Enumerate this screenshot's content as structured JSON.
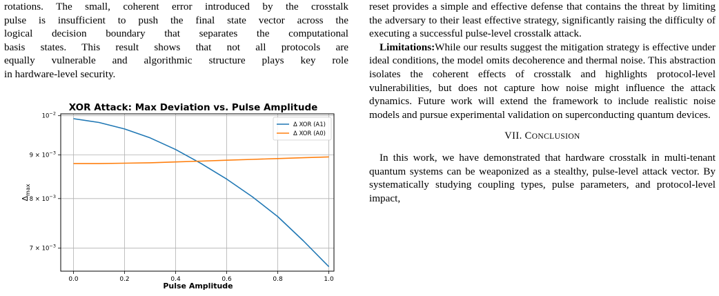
{
  "left_column": {
    "paragraph_lines": [
      "rotations. The small, coherent error introduced by the crosstalk",
      "pulse is insufficient to push the final state vector across the",
      "logical decision boundary that separates the computational",
      "basis states. This result shows that not all protocols are",
      "equally vulnerable and algorithmic structure plays key role",
      "in hardware-level security."
    ]
  },
  "right_column": {
    "paragraph1": "reset provides a simple and effective defense that contains the threat by limiting the adversary to their least effective strategy, significantly raising the difficulty of executing a successful pulse-level crosstalk attack.",
    "limitations_label": "Limitations:",
    "limitations_text": "While our results suggest the mitigation strategy is effective under ideal conditions, the model omits decoherence and thermal noise. This abstraction isolates the coherent effects of crosstalk and highlights protocol-level vulnerabilities, but does not capture how noise might influence the attack dynamics. Future work will extend the framework to include realistic noise models and pursue experimental validation on superconducting quantum devices.",
    "section_number": "VII.",
    "section_title_first": "C",
    "section_title_rest": "ONCLUSION",
    "conclusion_text": "In this work, we have demonstrated that hardware crosstalk in multi-tenant quantum systems can be weaponized as a stealthy, pulse-level attack vector. By systematically studying coupling types, pulse parameters, and protocol-level impact,"
  },
  "chart_data": {
    "type": "line",
    "title": "XOR Attack: Max Deviation vs. Pulse Amplitude",
    "xlabel": "Pulse Amplitude",
    "ylabel": "Δmax",
    "ylabel_main": "Δ",
    "ylabel_sub": "max",
    "xlim": [
      -0.05,
      1.02
    ],
    "ylim": [
      0.00658,
      0.01005
    ],
    "yscale": "log",
    "x_ticks": [
      0.0,
      0.2,
      0.4,
      0.6,
      0.8,
      1.0
    ],
    "x_tick_labels": [
      "0.0",
      "0.2",
      "0.4",
      "0.6",
      "0.8",
      "1.0"
    ],
    "y_ticks": [
      {
        "value": 0.01,
        "mantissa": "",
        "base": "10",
        "exp": "−2"
      },
      {
        "value": 0.009,
        "mantissa": "9 × ",
        "base": "10",
        "exp": "−3"
      },
      {
        "value": 0.008,
        "mantissa": "8 × ",
        "base": "10",
        "exp": "−3"
      },
      {
        "value": 0.007,
        "mantissa": "7 × ",
        "base": "10",
        "exp": "−3"
      }
    ],
    "grid": true,
    "legend_position": "top-right",
    "series": [
      {
        "name": "Δ XOR (A1)",
        "color": "#1f77b4",
        "x": [
          0.0,
          0.1,
          0.2,
          0.3,
          0.4,
          0.5,
          0.6,
          0.7,
          0.8,
          0.9,
          1.0
        ],
        "y": [
          0.00992,
          0.00982,
          0.00965,
          0.00942,
          0.00913,
          0.00879,
          0.00843,
          0.00804,
          0.00762,
          0.00714,
          0.00666
        ]
      },
      {
        "name": "Δ XOR (A0)",
        "color": "#ff7f0e",
        "x": [
          0.0,
          0.1,
          0.2,
          0.3,
          0.4,
          0.5,
          0.6,
          0.7,
          0.8,
          0.9,
          1.0
        ],
        "y": [
          0.00879,
          0.00879,
          0.0088,
          0.00881,
          0.00883,
          0.00885,
          0.00887,
          0.00889,
          0.00891,
          0.00893,
          0.00895
        ]
      }
    ]
  }
}
